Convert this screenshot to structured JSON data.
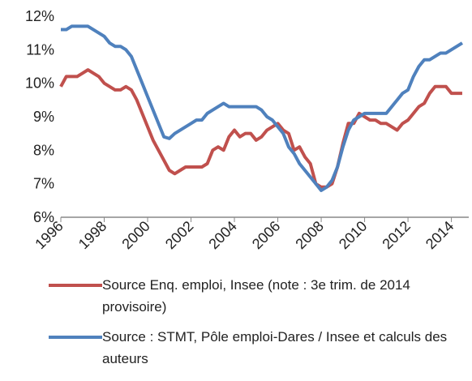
{
  "chart_data": {
    "type": "line",
    "x": [
      1996,
      1996.25,
      1996.5,
      1996.75,
      1997,
      1997.25,
      1997.5,
      1997.75,
      1998,
      1998.25,
      1998.5,
      1998.75,
      1999,
      1999.25,
      1999.5,
      1999.75,
      2000,
      2000.25,
      2000.5,
      2000.75,
      2001,
      2001.25,
      2001.5,
      2001.75,
      2002,
      2002.25,
      2002.5,
      2002.75,
      2003,
      2003.25,
      2003.5,
      2003.75,
      2004,
      2004.25,
      2004.5,
      2004.75,
      2005,
      2005.25,
      2005.5,
      2005.75,
      2006,
      2006.25,
      2006.5,
      2006.75,
      2007,
      2007.25,
      2007.5,
      2007.75,
      2008,
      2008.25,
      2008.5,
      2008.75,
      2009,
      2009.25,
      2009.5,
      2009.75,
      2010,
      2010.25,
      2010.5,
      2010.75,
      2011,
      2011.25,
      2011.5,
      2011.75,
      2012,
      2012.25,
      2012.5,
      2012.75,
      2013,
      2013.25,
      2013.5,
      2013.75,
      2014,
      2014.25,
      2014.5
    ],
    "series": [
      {
        "name": "Source Enq. emploi, Insee (note : 3e trim. de 2014 provisoire)",
        "color": "#c0504d",
        "values": [
          9.9,
          10.2,
          10.2,
          10.2,
          10.3,
          10.4,
          10.3,
          10.2,
          10.0,
          9.9,
          9.8,
          9.8,
          9.9,
          9.8,
          9.5,
          9.1,
          8.7,
          8.3,
          8.0,
          7.7,
          7.4,
          7.3,
          7.4,
          7.5,
          7.5,
          7.5,
          7.5,
          7.6,
          8.0,
          8.1,
          8.0,
          8.4,
          8.6,
          8.4,
          8.5,
          8.5,
          8.3,
          8.4,
          8.6,
          8.7,
          8.8,
          8.6,
          8.5,
          8.0,
          8.1,
          7.8,
          7.6,
          7.0,
          6.9,
          6.9,
          7.0,
          7.5,
          8.2,
          8.8,
          8.8,
          9.1,
          9.0,
          8.9,
          8.9,
          8.8,
          8.8,
          8.7,
          8.6,
          8.8,
          8.9,
          9.1,
          9.3,
          9.4,
          9.7,
          9.9,
          9.9,
          9.9,
          9.7,
          9.7,
          9.7
        ]
      },
      {
        "name": "Source : STMT, Pôle emploi-Dares / Insee et calculs des auteurs",
        "color": "#4f81bd",
        "values": [
          11.6,
          11.6,
          11.7,
          11.7,
          11.7,
          11.7,
          11.6,
          11.5,
          11.4,
          11.2,
          11.1,
          11.1,
          11.0,
          10.8,
          10.4,
          10.0,
          9.6,
          9.2,
          8.8,
          8.4,
          8.35,
          8.5,
          8.6,
          8.7,
          8.8,
          8.9,
          8.9,
          9.1,
          9.2,
          9.3,
          9.4,
          9.3,
          9.3,
          9.3,
          9.3,
          9.3,
          9.3,
          9.2,
          9.0,
          8.9,
          8.7,
          8.5,
          8.1,
          7.9,
          7.6,
          7.4,
          7.2,
          7.0,
          6.8,
          6.9,
          7.1,
          7.5,
          8.1,
          8.6,
          8.9,
          9.0,
          9.1,
          9.1,
          9.1,
          9.1,
          9.1,
          9.3,
          9.5,
          9.7,
          9.8,
          10.2,
          10.5,
          10.7,
          10.7,
          10.8,
          10.9,
          10.9,
          11.0,
          11.1,
          11.2
        ]
      }
    ],
    "xlim": [
      1996,
      2014.8
    ],
    "xticks": [
      1996,
      1998,
      2000,
      2002,
      2004,
      2006,
      2008,
      2010,
      2012,
      2014
    ],
    "ylim": [
      6,
      12
    ],
    "yticks": [
      {
        "value": 6,
        "label": "6%"
      },
      {
        "value": 7,
        "label": "7%"
      },
      {
        "value": 8,
        "label": "8%"
      },
      {
        "value": 9,
        "label": "9%"
      },
      {
        "value": 10,
        "label": "10%"
      },
      {
        "value": 11,
        "label": "11%"
      },
      {
        "value": 12,
        "label": "12%"
      }
    ],
    "grid": false
  }
}
